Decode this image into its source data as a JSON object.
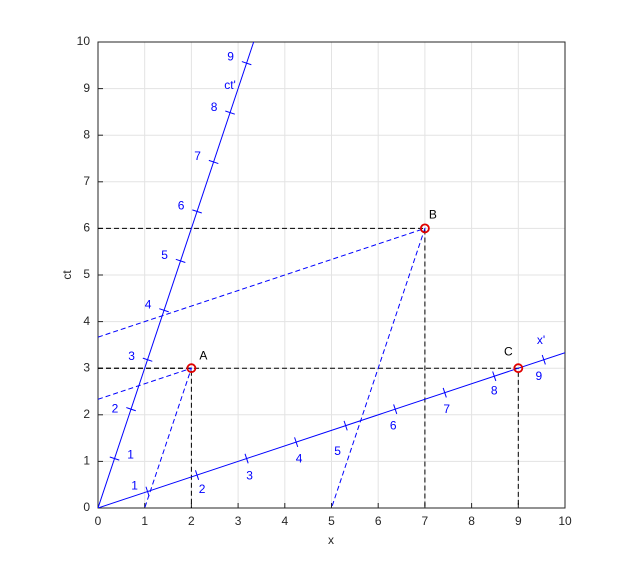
{
  "chart_data": {
    "type": "minkowski",
    "xlabel": "x",
    "ylabel": "ct",
    "xlim": [
      0,
      10
    ],
    "ylim": [
      0,
      10
    ],
    "xticks": [
      0,
      1,
      2,
      3,
      4,
      5,
      6,
      7,
      8,
      9,
      10
    ],
    "yticks": [
      0,
      1,
      2,
      3,
      4,
      5,
      6,
      7,
      8,
      9,
      10
    ],
    "grid": true,
    "points": {
      "labels": [
        "A",
        "B",
        "C"
      ],
      "x": [
        2,
        7,
        9
      ],
      "y": [
        3,
        6,
        3
      ],
      "color": "#e00000"
    },
    "frame_lines": [
      {
        "name": "ct'",
        "x": [
          0,
          3.333
        ],
        "y": [
          0,
          10
        ],
        "color": "#0000ff"
      },
      {
        "name": "x'",
        "x": [
          0,
          10
        ],
        "y": [
          0,
          3.333
        ],
        "color": "#0000ff"
      }
    ],
    "black_projections": {
      "color": "#000000",
      "lines": [
        {
          "x": [
            0,
            2,
            2
          ],
          "y": [
            3,
            3,
            0
          ]
        },
        {
          "x": [
            0,
            7,
            7
          ],
          "y": [
            6,
            6,
            0
          ]
        },
        {
          "x": [
            0,
            9,
            9
          ],
          "y": [
            3,
            3,
            0
          ]
        }
      ]
    },
    "blue_projections": {
      "color": "#0000ff",
      "lines": [
        {
          "x": [
            0,
            2,
            1
          ],
          "y": [
            2.333,
            3,
            0
          ]
        },
        {
          "x": [
            0,
            7,
            5
          ],
          "y": [
            3.667,
            6,
            0
          ]
        }
      ]
    },
    "ct_prime_ticks": {
      "labels": [
        1,
        2,
        3,
        4,
        5,
        6,
        7,
        8,
        9
      ],
      "x": [
        0.354,
        0.707,
        1.061,
        1.414,
        1.768,
        2.121,
        2.475,
        2.828,
        3.182
      ],
      "y": [
        1.061,
        2.121,
        3.182,
        4.243,
        5.303,
        6.364,
        7.425,
        8.485,
        9.546
      ]
    },
    "x_prime_ticks": {
      "labels": [
        1,
        2,
        3,
        4,
        5,
        6,
        7,
        8,
        9
      ],
      "x": [
        1.061,
        2.121,
        3.182,
        4.243,
        5.303,
        6.364,
        7.425,
        8.485,
        9.546
      ],
      "y": [
        0.354,
        0.707,
        1.061,
        1.414,
        1.768,
        2.121,
        2.475,
        2.828,
        3.182
      ]
    }
  }
}
